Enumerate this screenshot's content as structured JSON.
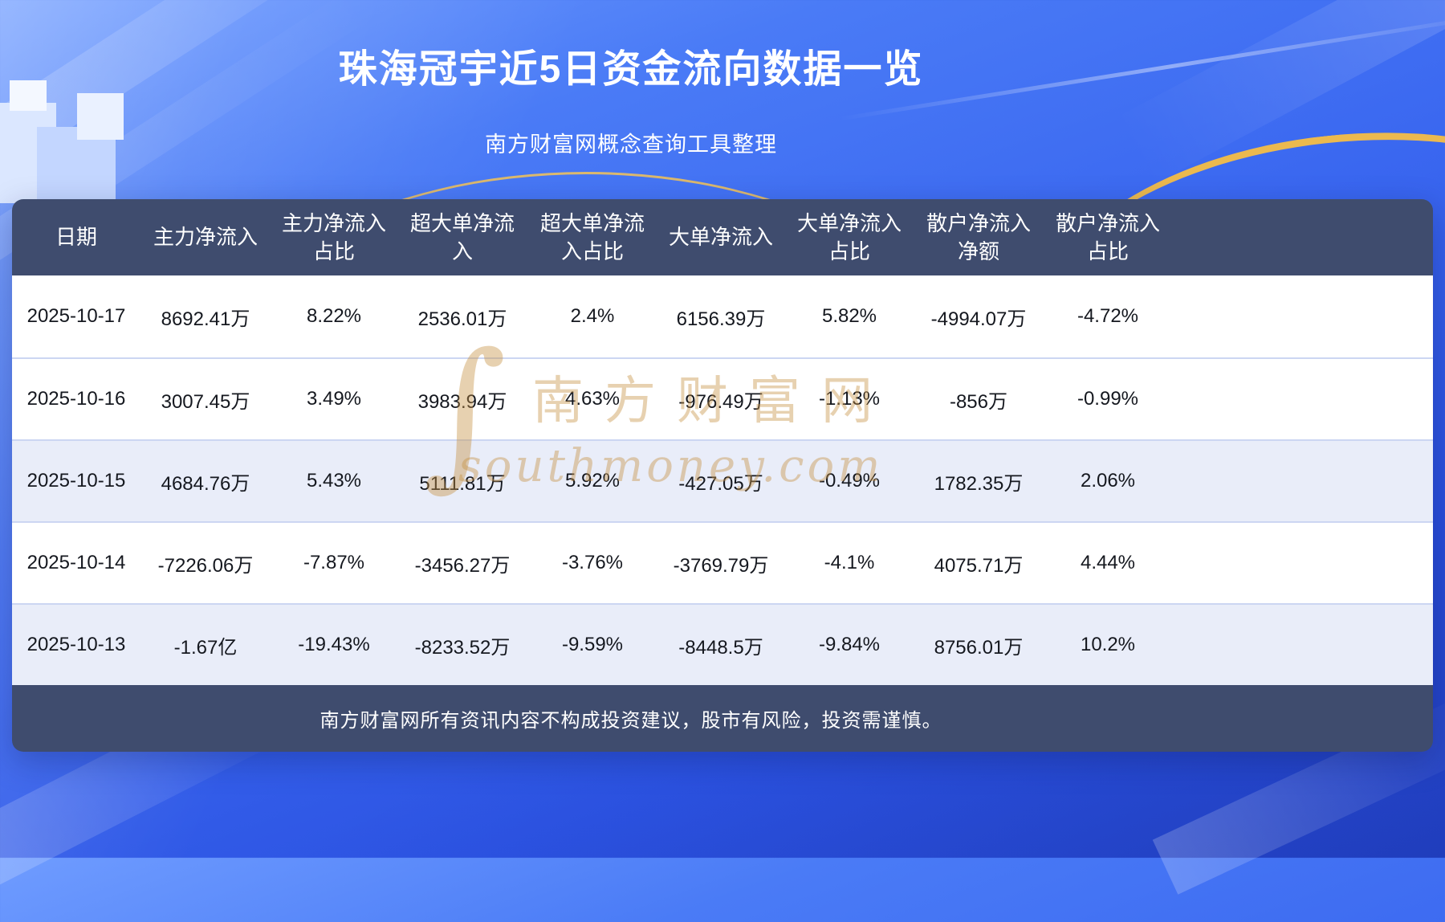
{
  "page": {
    "title": "珠海冠宇近5日资金流向数据一览",
    "subtitle": "南方财富网概念查询工具整理",
    "disclaimer": "南方财富网所有资讯内容不构成投资建议，股市有风险，投资需谨慎。"
  },
  "watermark": {
    "line1": "南方财富网",
    "line2": "southmoney.com"
  },
  "colors": {
    "background_top": "#6f9cff",
    "background_bottom": "#2343c4",
    "header_bg": "#3f4c6e",
    "row_tint": "#e9edf9",
    "row_separator": "#ccd6f2",
    "accent_gold": "#f2bf55",
    "text_dark": "#15181f"
  },
  "chart_data": {
    "type": "table",
    "title": "珠海冠宇近5日资金流向数据一览",
    "columns": [
      "日期",
      "主力净流入",
      "主力净流入占比",
      "超大单净流入",
      "超大单净流入占比",
      "大单净流入",
      "大单净流入占比",
      "散户净流入净额",
      "散户净流入占比"
    ],
    "rows": [
      [
        "2025-10-17",
        "8692.41万",
        "8.22%",
        "2536.01万",
        "2.4%",
        "6156.39万",
        "5.82%",
        "-4994.07万",
        "-4.72%"
      ],
      [
        "2025-10-16",
        "3007.45万",
        "3.49%",
        "3983.94万",
        "4.63%",
        "-976.49万",
        "-1.13%",
        "-856万",
        "-0.99%"
      ],
      [
        "2025-10-15",
        "4684.76万",
        "5.43%",
        "5111.81万",
        "5.92%",
        "-427.05万",
        "-0.49%",
        "1782.35万",
        "2.06%"
      ],
      [
        "2025-10-14",
        "-7226.06万",
        "-7.87%",
        "-3456.27万",
        "-3.76%",
        "-3769.79万",
        "-4.1%",
        "4075.71万",
        "4.44%"
      ],
      [
        "2025-10-13",
        "-1.67亿",
        "-19.43%",
        "-8233.52万",
        "-9.59%",
        "-8448.5万",
        "-9.84%",
        "8756.01万",
        "10.2%"
      ]
    ]
  }
}
